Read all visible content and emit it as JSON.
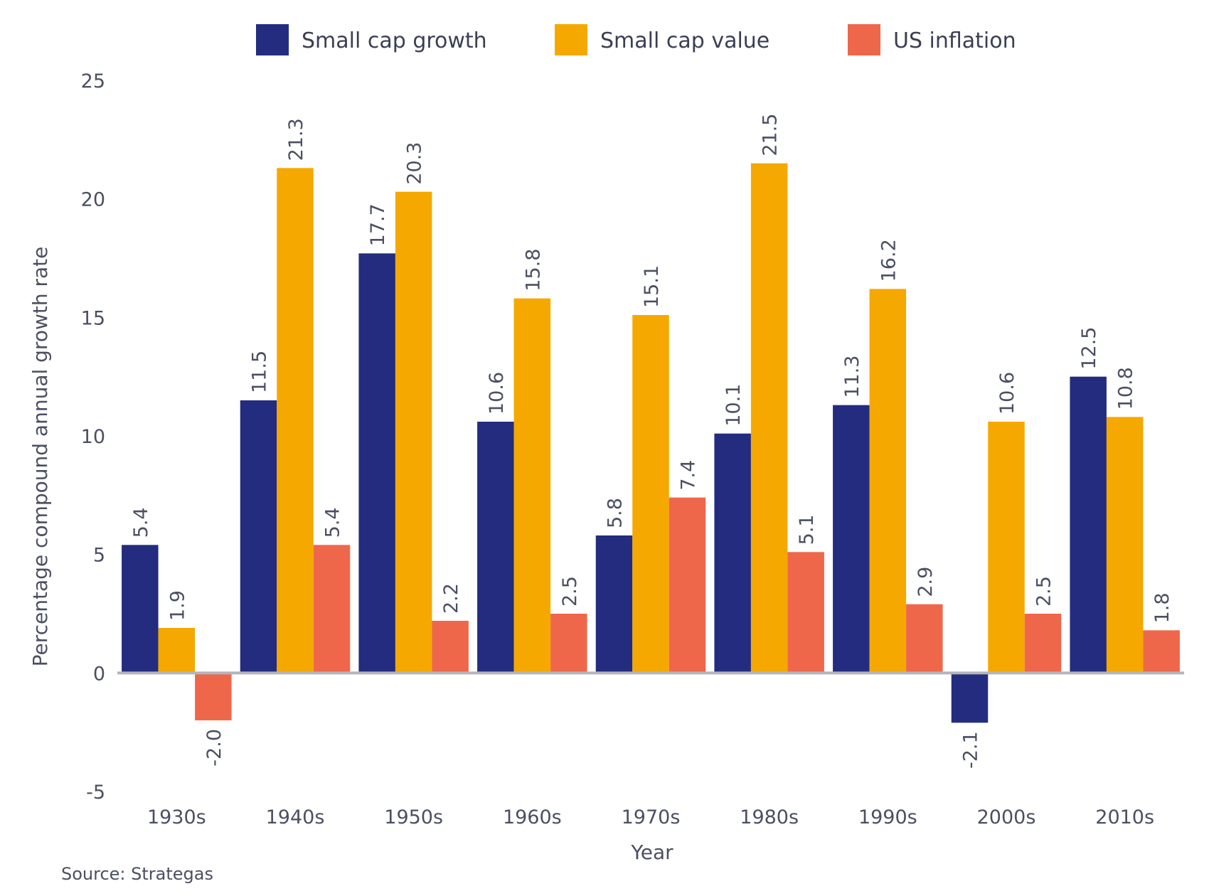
{
  "chart_data": {
    "type": "bar",
    "categories": [
      "1930s",
      "1940s",
      "1950s",
      "1960s",
      "1970s",
      "1980s",
      "1990s",
      "2000s",
      "2010s"
    ],
    "series": [
      {
        "name": "Small cap growth",
        "color": "#232c7e",
        "values": [
          5.4,
          11.5,
          17.7,
          10.6,
          5.8,
          10.1,
          11.3,
          -2.1,
          12.5
        ]
      },
      {
        "name": "Small cap value",
        "color": "#f5a800",
        "values": [
          1.9,
          21.3,
          20.3,
          15.8,
          15.1,
          21.5,
          16.2,
          10.6,
          10.8
        ]
      },
      {
        "name": "US inflation",
        "color": "#ef674b",
        "values": [
          -2.0,
          5.4,
          2.2,
          2.5,
          7.4,
          5.1,
          2.9,
          2.5,
          1.8
        ]
      }
    ],
    "xlabel": "Year",
    "ylabel": "Percentage compound annual growth rate",
    "ylim": [
      -5,
      25
    ],
    "yticks": [
      25,
      20,
      15,
      10,
      5,
      0,
      -5
    ],
    "grid": false,
    "legend": "top"
  },
  "source": "Source: Strategas"
}
